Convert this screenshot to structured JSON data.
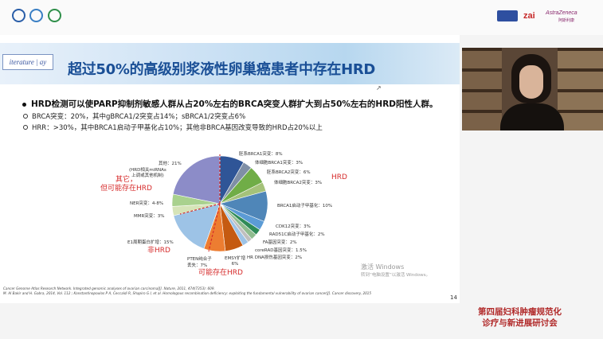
{
  "sponsors": [
    "zai",
    "AstraZeneca",
    "阿斯利康"
  ],
  "slide": {
    "logo_text": "iterature | ay",
    "title": "超过50%的高级别浆液性卵巢癌患者中存在HRD",
    "bullet": "HRD检测可以使PARP抑制剂敏感人群从占20%左右的BRCA突变人群扩大到占50%左右的HRD阳性人群。",
    "sub1": "BRCA突变：20%，其中gBRCA1/2突变占14%；sBRCA1/2突变占6%",
    "sub2": "HRR：>30%，其中BRCA1启动子甲基化占10%；其他非BRCA基因改变导致的HRD占20%以上",
    "pie_labels": {
      "gbrca1": "胚系BRCA1突变：8%",
      "sbrca1": "体细胞BRCA1突变：3%",
      "gbrca2": "胚系BRCA2突变：6%",
      "sbrca2": "体细胞BRCA2突变：3%",
      "brca1_meth": "BRCA1启动子甲基化：10%",
      "cdk12": "CDK12突变：3%",
      "rad51c": "RAD51C启动子甲基化：2%",
      "fa": "FA基因突变：2%",
      "corehr": "coreRAD基因突变：1.5%",
      "hrdna": "HR DNA损伤基因突变：2%",
      "emsy": "EMSY扩增",
      "emsy_val": "6%",
      "pten": "PTEN纯合子",
      "pten2": "丢失：7%",
      "e1": "E1周期蛋白扩增：15%",
      "mmr": "MMR突变：3%",
      "ner": "NER突变：4-8%",
      "other_detail1": "(HRD相关miRNAs",
      "other_detail2": "上调或其他机制)",
      "other": "其他：21%"
    },
    "red_labels": {
      "hrd": "HRD",
      "non_hrd": "非HRD",
      "other_line1": "其它，",
      "other_line2": "但可能存在HRD",
      "maybe_hrd": "可能存在HRD"
    },
    "ref1": "Cancer Genome Atlas Research Network. Integrated genomic analyses of ovarian carcinoma[J]. Nature, 2011, 474(7353): 609.",
    "ref2": "M. Al Bakir and H. Gabra, 2014, Vol. 112 ; Konstantinopoulos P A, Ceccaldi R, Shapiro G I, et al. Homologous recombination deficiency: exploiting the fundamental vulnerability of ovarian cancer[J]. Cancer discovery, 2015",
    "page": "14",
    "watermark1": "激活 Windows",
    "watermark2": "转到“电脑设置”以激活 Windows。"
  },
  "conference": {
    "line1": "第四届妇科肿瘤规范化",
    "line2": "诊疗与新进展研讨会"
  },
  "pie_chart": {
    "segments": [
      {
        "label": "胚系BRCA1突变",
        "value": 8,
        "color": "#2f5597"
      },
      {
        "label": "体细胞BRCA1突变",
        "value": 3,
        "color": "#7f8fa6"
      },
      {
        "label": "胚系BRCA2突变",
        "value": 6,
        "color": "#70ad47"
      },
      {
        "label": "体细胞BRCA2突变",
        "value": 3,
        "color": "#a5c27a"
      },
      {
        "label": "BRCA1启动子甲基化",
        "value": 10,
        "color": "#4f86b8"
      },
      {
        "label": "CDK12突变",
        "value": 3,
        "color": "#5b9bd5"
      },
      {
        "label": "RAD51C启动子甲基化",
        "value": 2,
        "color": "#2e8b57"
      },
      {
        "label": "FA基因突变",
        "value": 2,
        "color": "#8fbc8f"
      },
      {
        "label": "coreRAD基因突变",
        "value": 1.5,
        "color": "#bfbfbf"
      },
      {
        "label": "HR DNA损伤基因突变",
        "value": 2,
        "color": "#9dc3e6"
      },
      {
        "label": "EMSY扩增",
        "value": 6,
        "color": "#c55a11"
      },
      {
        "label": "PTEN纯合子丢失",
        "value": 7,
        "color": "#ed7d31"
      },
      {
        "label": "E1周期蛋白扩增",
        "value": 15,
        "color": "#9dc3e6"
      },
      {
        "label": "MMR突变",
        "value": 3,
        "color": "#d6e4b8"
      },
      {
        "label": "NER突变",
        "value": 4,
        "color": "#a9d18e"
      },
      {
        "label": "其他",
        "value": 21,
        "color": "#8c8cc8"
      }
    ]
  }
}
